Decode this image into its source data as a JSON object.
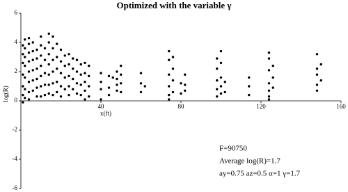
{
  "chart_data": {
    "type": "scatter",
    "title": "Optimized with the variable γ",
    "x_label": "x(ft)",
    "y_label": "log(R)",
    "annotations": [
      "F=90750",
      "Average log(R)=1.7",
      "ay=0.75 az=0.5 α=1 γ=1.7"
    ],
    "color": "#000000",
    "xlim": [
      0,
      160
    ],
    "xticks": [
      40,
      80,
      120,
      160
    ],
    "ylim": [
      -6,
      6
    ],
    "yticks": [
      -6,
      -4,
      -2,
      0,
      2,
      4,
      6
    ],
    "x": [
      1,
      1,
      1,
      1,
      1,
      1,
      1,
      2,
      2,
      2,
      2,
      2,
      2,
      2,
      4,
      4,
      4,
      4,
      4,
      4,
      4,
      4,
      6,
      6,
      6,
      6,
      6,
      6,
      8,
      8,
      8,
      8,
      8,
      8,
      10,
      10,
      10,
      10,
      10,
      10,
      10,
      12,
      12,
      12,
      12,
      12,
      14,
      14,
      14,
      14,
      14,
      14,
      14,
      16,
      16,
      16,
      16,
      16,
      16,
      18,
      18,
      18,
      18,
      18,
      20,
      20,
      20,
      20,
      20,
      22,
      22,
      22,
      22,
      24,
      24,
      24,
      24,
      24,
      26,
      26,
      26,
      26,
      28,
      28,
      28,
      28,
      30,
      30,
      30,
      30,
      32,
      32,
      32,
      32,
      32,
      34,
      34,
      34,
      34,
      40,
      40,
      40,
      40,
      44,
      44,
      44,
      46,
      48,
      48,
      48,
      48,
      50,
      50,
      50,
      50,
      60,
      60,
      60,
      62,
      74,
      74,
      74,
      74,
      74,
      74,
      76,
      76,
      76,
      76,
      80,
      80,
      82,
      82,
      82,
      98,
      98,
      98,
      98,
      98,
      100,
      100,
      100,
      100,
      100,
      102,
      102,
      114,
      114,
      114,
      124,
      124,
      124,
      124,
      124,
      124,
      124,
      126,
      126,
      126,
      148,
      148,
      148,
      148,
      148,
      150,
      150
    ],
    "values": [
      3.8,
      3.2,
      2.6,
      1.8,
      1.0,
      0.4,
      -0.1,
      4.2,
      3.6,
      3.0,
      2.4,
      1.6,
      0.8,
      0.2,
      4.3,
      3.9,
      3.3,
      2.7,
      2.0,
      1.3,
      0.6,
      0.1,
      4.0,
      3.4,
      2.8,
      2.1,
      1.4,
      0.7,
      3.5,
      2.9,
      2.2,
      1.5,
      0.9,
      0.3,
      4.4,
      3.8,
      3.1,
      2.4,
      1.7,
      1.0,
      0.3,
      3.6,
      2.8,
      1.9,
      1.1,
      0.4,
      4.6,
      4.0,
      3.2,
      2.5,
      1.8,
      1.1,
      0.5,
      4.4,
      3.6,
      2.8,
      2.0,
      1.2,
      0.4,
      3.9,
      3.0,
      2.2,
      1.3,
      0.6,
      3.5,
      2.7,
      1.9,
      1.0,
      0.3,
      3.1,
      2.4,
      1.6,
      0.8,
      3.2,
      2.5,
      1.7,
      1.0,
      0.4,
      2.9,
      2.2,
      1.5,
      0.8,
      2.8,
      2.0,
      1.2,
      0.5,
      2.5,
      1.8,
      1.1,
      0.4,
      2.6,
      1.9,
      1.3,
      0.7,
      0.1,
      2.4,
      1.7,
      1.0,
      0.3,
      1.9,
      1.3,
      0.8,
      0.1,
      1.7,
      0.9,
      0.4,
      1.6,
      2.0,
      1.5,
      1.1,
      0.7,
      2.4,
      1.8,
      1.2,
      0.6,
      1.9,
      1.2,
      0.6,
      1.0,
      3.4,
      2.8,
      1.8,
      1.0,
      0.4,
      0.1,
      3.0,
      2.2,
      1.4,
      0.6,
      1.2,
      0.5,
      1.8,
      1.1,
      0.7,
      2.9,
      2.2,
      1.4,
      0.8,
      0.3,
      3.4,
      2.6,
      1.6,
      1.0,
      0.5,
      1.3,
      0.6,
      1.6,
      1.0,
      0.4,
      3.3,
      2.9,
      2.1,
      1.2,
      0.7,
      0.3,
      0.1,
      2.4,
      1.6,
      0.9,
      3.2,
      2.2,
      1.8,
      1.1,
      0.7,
      2.5,
      1.4
    ]
  }
}
